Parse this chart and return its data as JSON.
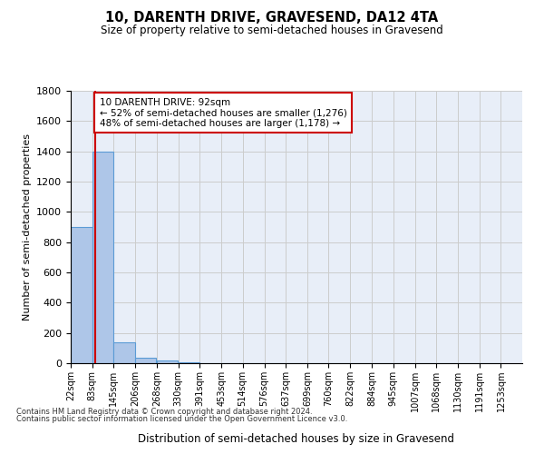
{
  "title": "10, DARENTH DRIVE, GRAVESEND, DA12 4TA",
  "subtitle": "Size of property relative to semi-detached houses in Gravesend",
  "xlabel": "Distribution of semi-detached houses by size in Gravesend",
  "ylabel": "Number of semi-detached properties",
  "property_size": 92,
  "property_label": "10 DARENTH DRIVE: 92sqm",
  "pct_smaller": 52,
  "n_smaller": 1276,
  "pct_larger": 48,
  "n_larger": 1178,
  "bin_labels": [
    "22sqm",
    "83sqm",
    "145sqm",
    "206sqm",
    "268sqm",
    "330sqm",
    "391sqm",
    "453sqm",
    "514sqm",
    "576sqm",
    "637sqm",
    "699sqm",
    "760sqm",
    "822sqm",
    "884sqm",
    "945sqm",
    "1007sqm",
    "1068sqm",
    "1130sqm",
    "1191sqm",
    "1253sqm"
  ],
  "bin_edges": [
    22,
    83,
    145,
    206,
    268,
    330,
    391,
    453,
    514,
    576,
    637,
    699,
    760,
    822,
    884,
    945,
    1007,
    1068,
    1130,
    1191,
    1253
  ],
  "bar_heights": [
    900,
    1400,
    140,
    35,
    20,
    5,
    2,
    1,
    0,
    0,
    0,
    0,
    0,
    0,
    0,
    0,
    0,
    0,
    0,
    0
  ],
  "bar_color": "#aec6e8",
  "bar_edge_color": "#5b9bd5",
  "property_line_color": "#cc0000",
  "annotation_box_color": "#ffffff",
  "annotation_box_edge": "#cc0000",
  "ylim": [
    0,
    1800
  ],
  "yticks": [
    0,
    200,
    400,
    600,
    800,
    1000,
    1200,
    1400,
    1600,
    1800
  ],
  "grid_color": "#cccccc",
  "bg_color": "#e8eef8",
  "footnote1": "Contains HM Land Registry data © Crown copyright and database right 2024.",
  "footnote2": "Contains public sector information licensed under the Open Government Licence v3.0."
}
